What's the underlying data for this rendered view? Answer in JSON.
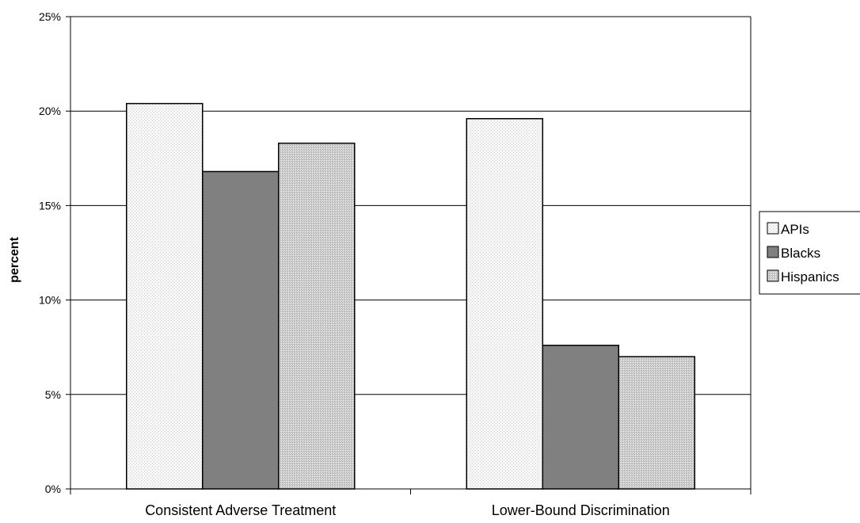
{
  "chart_data": {
    "type": "bar",
    "categories": [
      "Consistent Adverse Treatment",
      "Lower-Bound Discrimination"
    ],
    "series": [
      {
        "name": "APIs",
        "values": [
          20.4,
          19.6
        ],
        "color": "#f2f2f2",
        "pattern": "dots-light"
      },
      {
        "name": "Blacks",
        "values": [
          16.8,
          7.6
        ],
        "color": "#808080",
        "pattern": "solid"
      },
      {
        "name": "Hispanics",
        "values": [
          18.3,
          7.0
        ],
        "color": "#c8c8c8",
        "pattern": "dots-medium"
      }
    ],
    "ylabel": "percent",
    "xlabel": "",
    "ylim": [
      0,
      25
    ],
    "yticks": [
      0,
      5,
      10,
      15,
      20,
      25
    ],
    "ytick_labels": [
      "0%",
      "5%",
      "10%",
      "15%",
      "20%",
      "25%"
    ],
    "grid": true,
    "legend_position": "right"
  }
}
